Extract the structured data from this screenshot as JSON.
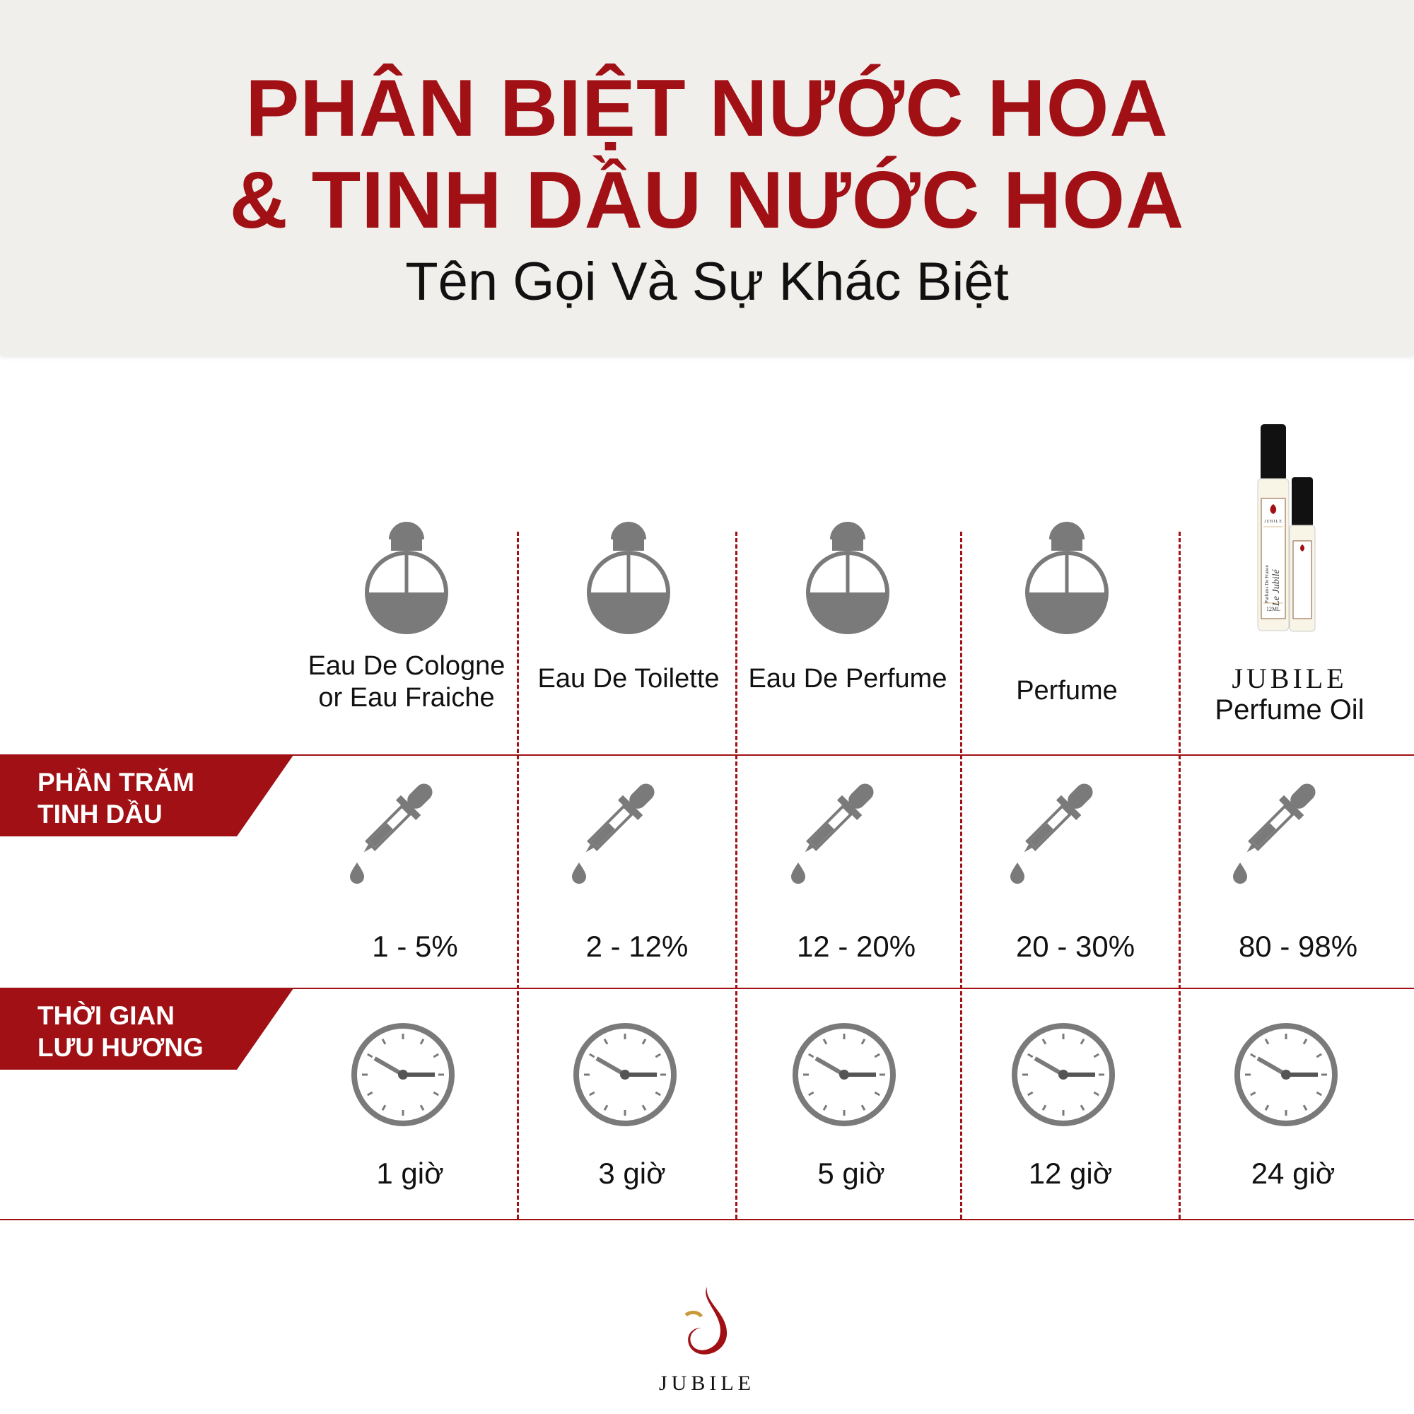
{
  "header": {
    "title_line1": "PHÂN BIỆT NƯỚC HOA",
    "title_line2": "& TINH DẦU NƯỚC HOA",
    "subtitle": "Tên Gọi Và Sự Khác Biệt"
  },
  "rows": {
    "oil_label": "PHẦN TRĂM TINH DẦU",
    "time_label": "THỜI GIAN LƯU HƯƠNG"
  },
  "columns": [
    {
      "name": "Eau De Cologne or Eau Fraiche",
      "oil": "1 - 5%",
      "time": "1 giờ"
    },
    {
      "name": "Eau De Toilette",
      "oil": "2 - 12%",
      "time": "3 giờ"
    },
    {
      "name": "Eau De Perfume",
      "oil": "12 - 20%",
      "time": "5 giờ"
    },
    {
      "name": "Perfume",
      "oil": "20 - 30%",
      "time": "12 giờ"
    },
    {
      "brand": "JUBILE",
      "name": "Perfume Oil",
      "oil": "80 - 98%",
      "time": "24 giờ"
    }
  ],
  "product_image": {
    "label_brand": "JUBILE",
    "label_text": "Parfums De France",
    "label_script": "Le Jubilé",
    "size": "12ML"
  },
  "footer": {
    "logo_text": "JUBILE"
  },
  "colors": {
    "accent": "#a01015",
    "icon_gray": "#7a7a7a",
    "header_bg": "#f1efec"
  }
}
